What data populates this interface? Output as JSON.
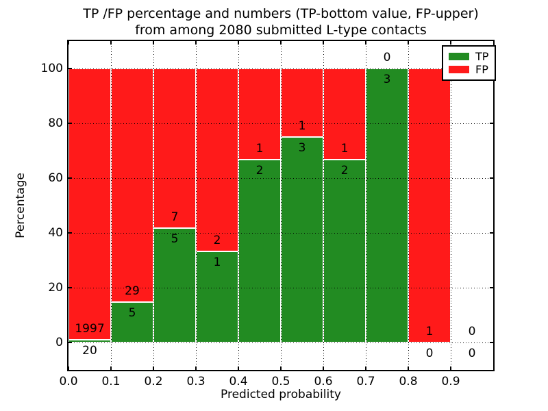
{
  "title": {
    "line1": "TP /FP percentage and numbers (TP-bottom value, FP-upper)",
    "line2": "from among 2080 submitted L-type contacts"
  },
  "chart_data": {
    "type": "bar",
    "stacked": true,
    "normalized_to_percent": true,
    "categories": [
      "0.0-0.1",
      "0.1-0.2",
      "0.2-0.3",
      "0.3-0.4",
      "0.4-0.5",
      "0.5-0.6",
      "0.6-0.7",
      "0.7-0.8",
      "0.8-0.9",
      "0.9-1.0"
    ],
    "bin_edges": [
      0.0,
      0.1,
      0.2,
      0.3,
      0.4,
      0.5,
      0.6,
      0.7,
      0.8,
      0.9,
      1.0
    ],
    "series": [
      {
        "name": "TP",
        "color": "#228b22",
        "values": [
          20,
          5,
          5,
          1,
          2,
          3,
          2,
          3,
          0,
          0
        ]
      },
      {
        "name": "FP",
        "color": "#ff1a1a",
        "values": [
          1997,
          29,
          7,
          2,
          1,
          1,
          1,
          0,
          1,
          0
        ]
      }
    ],
    "annotation_note": "TP count printed below green top boundary, FP count printed above it",
    "xlabel": "Predicted probability",
    "ylabel": "Percentage",
    "xtick_values": [
      0.0,
      0.1,
      0.2,
      0.3,
      0.4,
      0.5,
      0.6,
      0.7,
      0.8,
      0.9
    ],
    "xtick_labels": [
      "0.0",
      "0.1",
      "0.2",
      "0.3",
      "0.4",
      "0.5",
      "0.6",
      "0.7",
      "0.8",
      "0.9"
    ],
    "ytick_values": [
      0,
      20,
      40,
      60,
      80,
      100
    ],
    "ytick_labels": [
      "0",
      "20",
      "40",
      "60",
      "80",
      "100"
    ],
    "xlim": [
      0.0,
      1.0
    ],
    "ylim": [
      -10,
      110
    ],
    "grid": true,
    "grid_style": "dotted",
    "legend": {
      "position": "upper right",
      "entries": [
        {
          "label": "TP",
          "color": "#228b22"
        },
        {
          "label": "FP",
          "color": "#ff1a1a"
        }
      ]
    },
    "colors": {
      "tp": "#228b22",
      "fp": "#ff1a1a",
      "bar_edge": "#ffffff",
      "background": "#ffffff",
      "text": "#000000"
    }
  }
}
